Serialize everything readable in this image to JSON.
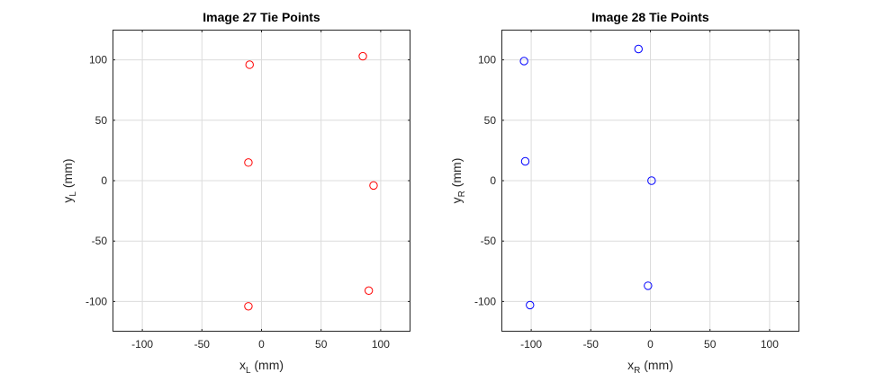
{
  "chart_data": [
    {
      "type": "scatter",
      "title": "Image 27 Tie Points",
      "xlabel": {
        "main": "x",
        "sub": "L",
        "unit": " (mm)"
      },
      "ylabel": {
        "main": "y",
        "sub": "L",
        "unit": " (mm)"
      },
      "xlim": [
        -125,
        125
      ],
      "ylim": [
        -125,
        125
      ],
      "xticks": [
        -100,
        -50,
        0,
        50,
        100
      ],
      "yticks": [
        -100,
        -50,
        0,
        50,
        100
      ],
      "grid": true,
      "marker": "circle",
      "color": "#ff0000",
      "points": [
        {
          "x": -10,
          "y": 96
        },
        {
          "x": 85,
          "y": 103
        },
        {
          "x": -11,
          "y": 15
        },
        {
          "x": 94,
          "y": -4
        },
        {
          "x": 90,
          "y": -91
        },
        {
          "x": -11,
          "y": -104
        }
      ]
    },
    {
      "type": "scatter",
      "title": "Image 28 Tie Points",
      "xlabel": {
        "main": "x",
        "sub": "R",
        "unit": " (mm)"
      },
      "ylabel": {
        "main": "y",
        "sub": "R",
        "unit": " (mm)"
      },
      "xlim": [
        -125,
        125
      ],
      "ylim": [
        -125,
        125
      ],
      "xticks": [
        -100,
        -50,
        0,
        50,
        100
      ],
      "yticks": [
        -100,
        -50,
        0,
        50,
        100
      ],
      "grid": true,
      "marker": "circle",
      "color": "#0000ff",
      "points": [
        {
          "x": -106,
          "y": 99
        },
        {
          "x": -10,
          "y": 109
        },
        {
          "x": -105,
          "y": 16
        },
        {
          "x": 1,
          "y": 0
        },
        {
          "x": -2,
          "y": -87
        },
        {
          "x": -101,
          "y": -103
        }
      ]
    }
  ]
}
